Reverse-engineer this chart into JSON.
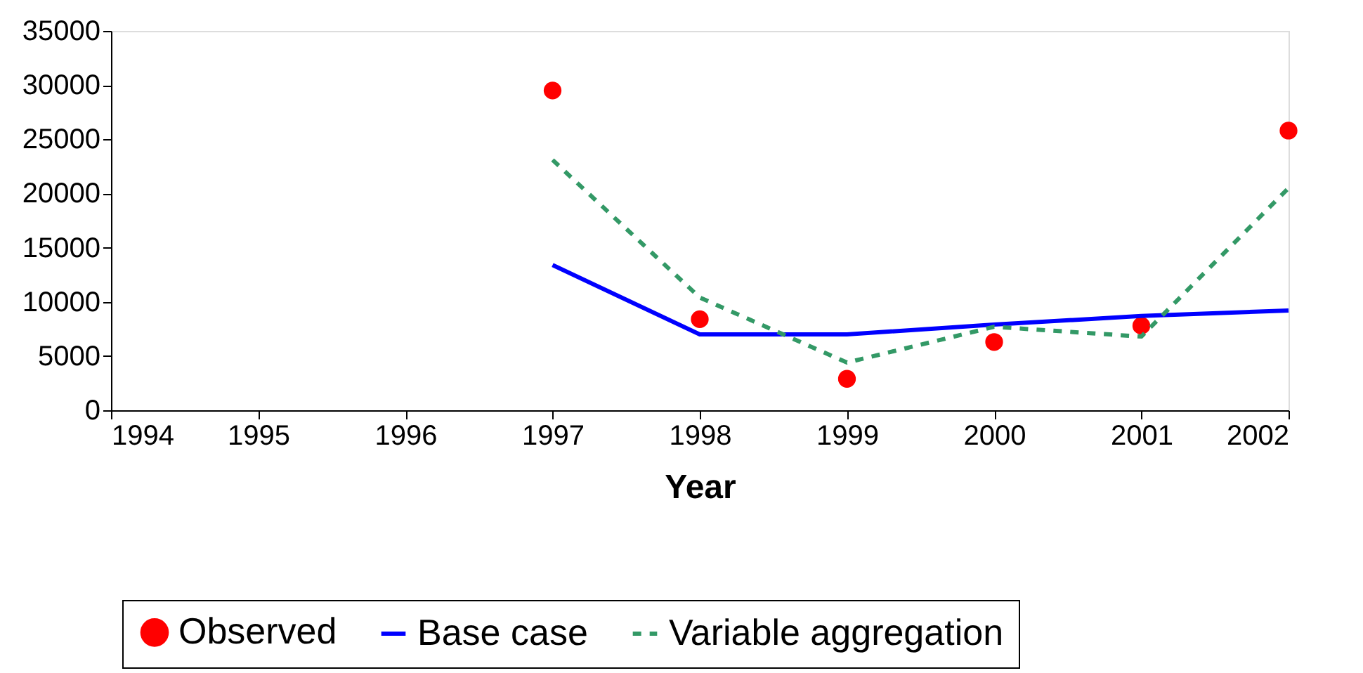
{
  "chart_data": {
    "type": "line",
    "xlabel": "Year",
    "x": [
      1997,
      1998,
      1999,
      2000,
      2001,
      2002
    ],
    "series": [
      {
        "name": "Observed",
        "type": "scatter",
        "color": "#ff0000",
        "marker": "circle",
        "values": [
          29500,
          8400,
          2900,
          6300,
          7800,
          25800
        ]
      },
      {
        "name": "Base case",
        "type": "line",
        "color": "#0000ff",
        "line_style": "solid",
        "values": [
          13400,
          7000,
          7000,
          7900,
          8700,
          9200
        ]
      },
      {
        "name": "Variable aggregation",
        "type": "line",
        "color": "#339966",
        "line_style": "dashed",
        "values": [
          23100,
          10400,
          4400,
          7700,
          6800,
          20500
        ]
      }
    ],
    "xlim": [
      1994,
      2002
    ],
    "xticks": [
      1994,
      1995,
      1996,
      1997,
      1998,
      1999,
      2000,
      2001,
      2002
    ],
    "ylim": [
      0,
      35000
    ],
    "yticks": [
      0,
      5000,
      10000,
      15000,
      20000,
      25000,
      30000,
      35000
    ],
    "grid": false,
    "legend": "bottom"
  }
}
